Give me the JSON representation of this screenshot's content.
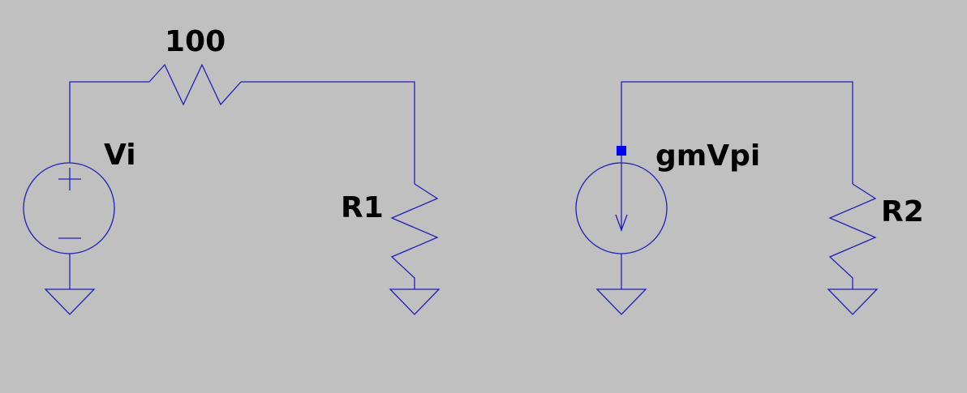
{
  "colors": {
    "background": "#c0c0c0",
    "wire": "#1f1fb8",
    "selected_pin": "#0000ff",
    "label": "#000000"
  },
  "labels": {
    "series_resistor_value": "100",
    "voltage_source": "Vi",
    "resistor_1": "R1",
    "current_source": "gmVpi",
    "resistor_2": "R2"
  },
  "icons": {
    "voltage_source": "voltage-source-icon",
    "current_source": "current-source-icon",
    "resistor": "resistor-icon",
    "ground": "ground-icon",
    "selected_node": "selected-pin-square"
  }
}
